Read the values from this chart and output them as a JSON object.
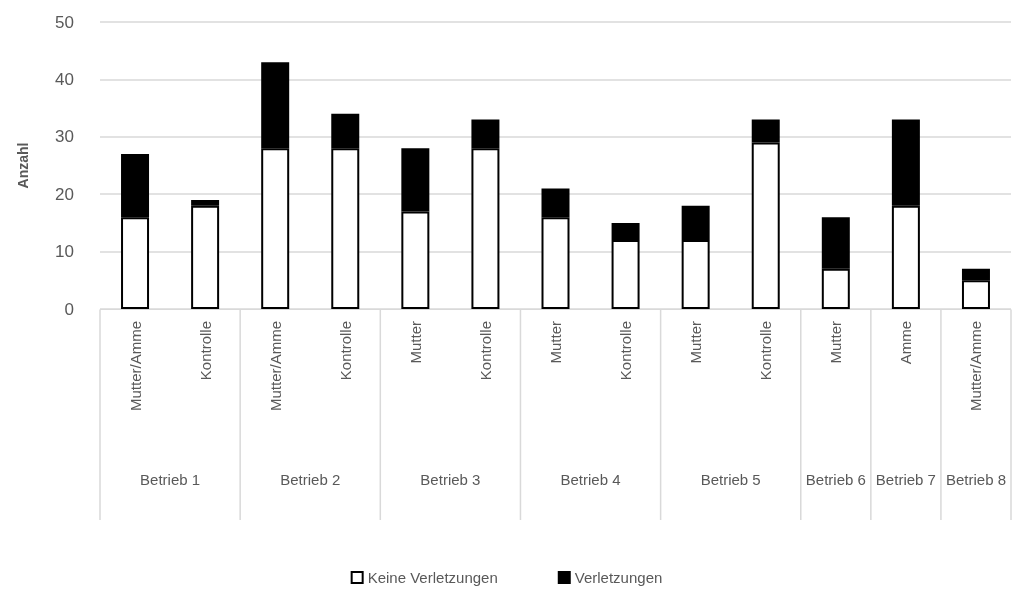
{
  "chart_data": {
    "type": "bar",
    "stacked": true,
    "ylabel": "Anzahl",
    "categories": [
      "Mutter/Amme",
      "Kontrolle",
      "Mutter/Amme",
      "Kontrolle",
      "Mutter",
      "Kontrolle",
      "Mutter",
      "Kontrolle",
      "Mutter",
      "Kontrolle",
      "Mutter",
      "Amme",
      "Mutter/Amme"
    ],
    "series": [
      {
        "name": "Keine Verletzungen",
        "color": "#ffffff",
        "values": [
          16,
          18,
          28,
          28,
          17,
          28,
          16,
          12,
          12,
          29,
          7,
          18,
          5
        ]
      },
      {
        "name": "Verletzungen",
        "color": "#000000",
        "values": [
          11,
          1,
          15,
          6,
          11,
          5,
          5,
          3,
          6,
          4,
          9,
          15,
          2
        ]
      }
    ],
    "annotations": [
      "Betrieb 1",
      "Betrieb 2",
      "Betrieb 3",
      "Betrieb 4",
      "Betrieb 5",
      "Betrieb 6",
      "Betrieb 7",
      "Betrieb 8"
    ],
    "ylim": [
      0,
      50
    ],
    "yticks": [
      0,
      10,
      20,
      30,
      40,
      50
    ],
    "grid": "y",
    "legend": "bottom"
  }
}
